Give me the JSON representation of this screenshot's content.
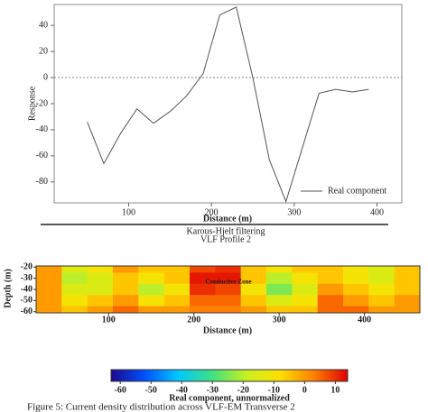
{
  "chart_data": [
    {
      "type": "line",
      "xlabel": "Distance (m)",
      "ylabel": "Response",
      "x": [
        50,
        70,
        90,
        110,
        130,
        150,
        170,
        190,
        210,
        230,
        250,
        270,
        290,
        330,
        350,
        370,
        390
      ],
      "series": [
        {
          "name": "Real component",
          "color": "#555555",
          "values": [
            -34,
            -66,
            -43,
            -24,
            -35,
            -26,
            -14,
            3,
            48,
            54,
            0,
            -63,
            -95,
            -12,
            -9,
            -11,
            -9
          ]
        }
      ],
      "xlim": [
        10,
        430
      ],
      "xticks": [
        100,
        200,
        300,
        400
      ],
      "ylim": [
        -96,
        56
      ],
      "yticks": [
        -80,
        -60,
        -40,
        -20,
        0,
        20,
        40
      ],
      "reference_line": 0,
      "legend": "lower right"
    },
    {
      "type": "heatmap",
      "title": "Karous-Hjelt filtering",
      "subtitle": "VLF Profile 2",
      "xlabel": "Distance (m)",
      "ylabel": "Depth (m)",
      "annotation": "Conductive Zone",
      "x": [
        30,
        60,
        90,
        120,
        150,
        180,
        210,
        240,
        270,
        300,
        330,
        360,
        390,
        420,
        450
      ],
      "y": [
        -20,
        -30,
        -40,
        -50,
        -60
      ],
      "z": [
        [
          0,
          -15,
          -10,
          0,
          -5,
          -5,
          8,
          10,
          -5,
          -10,
          -5,
          -5,
          -10,
          -15,
          -5
        ],
        [
          0,
          -20,
          -15,
          -5,
          -10,
          -5,
          12,
          12,
          -5,
          -20,
          -10,
          -5,
          -10,
          -15,
          -5
        ],
        [
          0,
          -15,
          -15,
          -5,
          -20,
          -10,
          10,
          8,
          -10,
          -25,
          -15,
          0,
          -5,
          -10,
          -5
        ],
        [
          0,
          -10,
          -5,
          0,
          -10,
          -5,
          5,
          5,
          -5,
          -15,
          -10,
          5,
          0,
          -5,
          0
        ],
        [
          0,
          -5,
          0,
          5,
          0,
          0,
          3,
          3,
          0,
          -5,
          -5,
          5,
          5,
          0,
          0
        ]
      ],
      "xlim": [
        15,
        465
      ],
      "xticks": [
        100,
        200,
        300,
        400
      ],
      "ylim": [
        -19,
        -61
      ],
      "yticks": [
        -20,
        -30,
        -40,
        -50,
        -60
      ],
      "colorscale": [
        "#1a0a8c",
        "#0050ff",
        "#00c8ff",
        "#40e080",
        "#c8f020",
        "#ffe000",
        "#ff8000",
        "#e00000"
      ],
      "zlim": [
        -63,
        14
      ],
      "zticks": [
        -60,
        -50,
        -40,
        -30,
        -20,
        -10,
        0,
        10
      ],
      "zlabel": "Real component, unnormalized"
    }
  ],
  "caption": "Figure 5: Current density distribution across VLF-EM Transverse 2"
}
